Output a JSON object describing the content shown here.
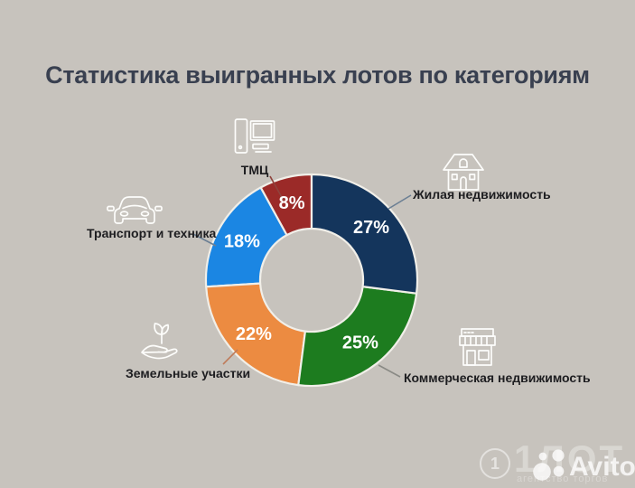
{
  "title": "Статистика выигранных лотов по категориям",
  "chart_data": {
    "type": "pie",
    "subtype": "donut",
    "title": "Статистика выигранных лотов по категориям",
    "start_angle_deg": 0,
    "direction": "clockwise",
    "value_suffix": "%",
    "inner_radius_ratio": 0.49,
    "legend_position": "labels around chart with leader lines and icons",
    "segments": [
      {
        "label": "Жилая недвижимость",
        "value": 27,
        "color": "#14355c",
        "icon": "house-icon",
        "leader_color": "#6b7f94"
      },
      {
        "label": "Коммерческая недвижимость",
        "value": 25,
        "color": "#1d7c1f",
        "icon": "store-icon",
        "leader_color": "#8a8a85"
      },
      {
        "label": "Земельные участки",
        "value": 22,
        "color": "#ec8b41",
        "icon": "hand-plant-icon",
        "leader_color": "#bf7b5a"
      },
      {
        "label": "Транспорт и техника",
        "value": 18,
        "color": "#1b86e3",
        "icon": "car-icon",
        "leader_color": "#6b7f94"
      },
      {
        "label": "ТМЦ",
        "value": 8,
        "color": "#9b2a28",
        "icon": "computer-icon",
        "leader_color": "#8f423c"
      }
    ]
  },
  "watermark": {
    "circle_number": "1",
    "brand_text": "1ЛОТ",
    "brand_subtext": "агентство торгов",
    "avito_label": "Avito"
  },
  "colors": {
    "background": "#c7c3bd",
    "title_text": "#394050",
    "label_text": "#1d1d20",
    "percent_text": "#ffffff",
    "segment_outline": "#f1efe9",
    "watermark": "#ffffff"
  }
}
